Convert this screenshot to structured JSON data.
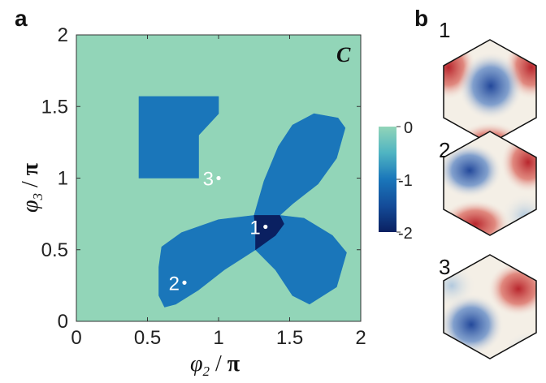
{
  "panels": {
    "a": "a",
    "b": "b"
  },
  "chart_data": {
    "type": "heatmap",
    "corner_label": "C",
    "xlabel": {
      "symbol": "φ",
      "subscript": "2",
      "separator": " / ",
      "unit": "π"
    },
    "ylabel": {
      "symbol": "φ",
      "subscript": "3",
      "separator": " / ",
      "unit": "π"
    },
    "xlim": [
      0,
      2
    ],
    "ylim": [
      0,
      2
    ],
    "xticks": [
      "0",
      "0.5",
      "1",
      "1.5",
      "2"
    ],
    "yticks": [
      "0",
      "0.5",
      "1",
      "1.5",
      "2"
    ],
    "colorbar": {
      "ticks": [
        "0",
        "-1",
        "-2"
      ],
      "range": [
        -2,
        0
      ]
    },
    "colors": {
      "zero": "#92d5b8",
      "minus_one": "#1a76ba",
      "minus_two": "#0a2061"
    },
    "regions": [
      {
        "value": -1,
        "points": [
          [
            0.44,
            1.57
          ],
          [
            1.0,
            1.57
          ],
          [
            1.0,
            1.45
          ],
          [
            0.86,
            1.3
          ],
          [
            0.86,
            1.0
          ],
          [
            0.44,
            1.0
          ],
          [
            0.44,
            1.45
          ]
        ]
      },
      {
        "value": -1,
        "points": [
          [
            1.25,
            0.74
          ],
          [
            1.32,
            0.98
          ],
          [
            1.42,
            1.22
          ],
          [
            1.52,
            1.37
          ],
          [
            1.67,
            1.45
          ],
          [
            1.84,
            1.42
          ],
          [
            1.89,
            1.35
          ],
          [
            1.83,
            1.14
          ],
          [
            1.7,
            0.96
          ],
          [
            1.52,
            0.82
          ],
          [
            1.43,
            0.74
          ]
        ]
      },
      {
        "value": -1,
        "points": [
          [
            1.25,
            0.74
          ],
          [
            1.0,
            0.71
          ],
          [
            0.74,
            0.62
          ],
          [
            0.6,
            0.52
          ],
          [
            0.58,
            0.38
          ],
          [
            0.58,
            0.18
          ],
          [
            0.62,
            0.1
          ],
          [
            0.7,
            0.12
          ],
          [
            0.86,
            0.22
          ],
          [
            1.04,
            0.36
          ],
          [
            1.26,
            0.5
          ],
          [
            1.26,
            0.62
          ]
        ]
      },
      {
        "value": -1,
        "points": [
          [
            1.26,
            0.5
          ],
          [
            1.4,
            0.36
          ],
          [
            1.52,
            0.18
          ],
          [
            1.64,
            0.12
          ],
          [
            1.83,
            0.24
          ],
          [
            1.9,
            0.48
          ],
          [
            1.8,
            0.6
          ],
          [
            1.6,
            0.72
          ],
          [
            1.43,
            0.74
          ]
        ]
      },
      {
        "value": -2,
        "points": [
          [
            1.25,
            0.74
          ],
          [
            1.43,
            0.74
          ],
          [
            1.46,
            0.68
          ],
          [
            1.4,
            0.6
          ],
          [
            1.26,
            0.5
          ],
          [
            1.26,
            0.62
          ]
        ]
      }
    ],
    "points": [
      {
        "label": "1",
        "x": 1.33,
        "y": 0.66
      },
      {
        "label": "2",
        "x": 0.76,
        "y": 0.27
      },
      {
        "label": "3",
        "x": 1.0,
        "y": 1.0
      }
    ]
  },
  "hexagons": [
    "1",
    "2",
    "3"
  ],
  "hex_colors": {
    "red": "#b8262d",
    "blue": "#2e5aa8",
    "light": "#f4efe6",
    "edge": "#111111"
  }
}
